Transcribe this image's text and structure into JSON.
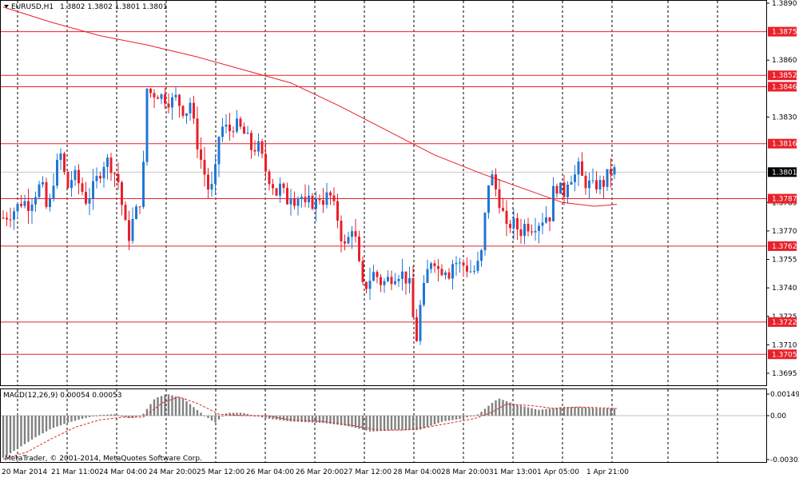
{
  "header": {
    "symbol_text": "EURUSD,H1",
    "ohlc_text": "1.3802 1.3802 1.3801 1.3801"
  },
  "macd": {
    "label": "MACD(12,26,9) 0.00054 0.00053",
    "axis_labels": [
      "0.00149",
      "0.00",
      "-0.00303"
    ],
    "ylim": [
      -0.00303,
      0.00149
    ]
  },
  "copyright": "MetaTrader, © 2001-2014, MetaQuotes Software Corp.",
  "chart_data": {
    "type": "candlestick",
    "ylim": [
      1.369,
      1.389
    ],
    "y_ticks": [
      "1.3890",
      "1.3860",
      "1.3830",
      "1.3785",
      "1.3770",
      "1.3755",
      "1.3740",
      "1.3725",
      "1.3710",
      "1.3695"
    ],
    "y_tick_values": [
      1.389,
      1.386,
      1.383,
      1.3785,
      1.377,
      1.3755,
      1.374,
      1.3725,
      1.371,
      1.3695
    ],
    "x_labels": [
      "20 Mar 2014",
      "21 Mar 11:00",
      "24 Mar 04:00",
      "24 Mar 20:00",
      "25 Mar 12:00",
      "26 Mar 04:00",
      "26 Mar 20:00",
      "27 Mar 12:00",
      "28 Mar 04:00",
      "28 Mar 20:00",
      "31 Mar 13:00",
      "1 Apr 05:00",
      "1 Apr 21:00"
    ],
    "horizontal_levels": [
      {
        "value": 1.3875,
        "label": "1.3875"
      },
      {
        "value": 1.3852,
        "label": "1.3852"
      },
      {
        "value": 1.3846,
        "label": "1.3846"
      },
      {
        "value": 1.3816,
        "label": "1.3816"
      },
      {
        "value": 1.3787,
        "label": "1.3787"
      },
      {
        "value": 1.3762,
        "label": "1.3762"
      },
      {
        "value": 1.3722,
        "label": "1.3722"
      },
      {
        "value": 1.3705,
        "label": "1.3705"
      }
    ],
    "current_price": {
      "value": 1.3801,
      "label": "1.3801"
    },
    "colors": {
      "bull": "#1f77d4",
      "bear": "#e8202a",
      "level": "#e8202a",
      "ma": "#e8202a",
      "grid": "#000000",
      "macd_bar": "#808080",
      "signal": "#e8202a"
    },
    "price_path": [
      [
        0,
        1.3777
      ],
      [
        8,
        1.3779
      ],
      [
        16,
        1.3782
      ],
      [
        24,
        1.3786
      ],
      [
        32,
        1.3784
      ],
      [
        40,
        1.379
      ],
      [
        48,
        1.3795
      ],
      [
        56,
        1.3778
      ],
      [
        64,
        1.38
      ],
      [
        72,
        1.381
      ],
      [
        80,
        1.3792
      ],
      [
        88,
        1.38
      ],
      [
        96,
        1.3794
      ],
      [
        104,
        1.3786
      ],
      [
        112,
        1.3792
      ],
      [
        120,
        1.38
      ],
      [
        128,
        1.3808
      ],
      [
        136,
        1.3804
      ],
      [
        144,
        1.3796
      ],
      [
        150,
        1.378
      ],
      [
        156,
        1.3765
      ],
      [
        162,
        1.3775
      ],
      [
        168,
        1.3782
      ],
      [
        174,
        1.379
      ],
      [
        180,
        1.3845
      ],
      [
        186,
        1.3842
      ],
      [
        192,
        1.3843
      ],
      [
        198,
        1.3841
      ],
      [
        204,
        1.384
      ],
      [
        210,
        1.3838
      ],
      [
        216,
        1.384
      ],
      [
        222,
        1.3836
      ],
      [
        228,
        1.3832
      ],
      [
        234,
        1.3838
      ],
      [
        240,
        1.3822
      ],
      [
        246,
        1.381
      ],
      [
        252,
        1.38
      ],
      [
        258,
        1.379
      ],
      [
        264,
        1.3795
      ],
      [
        270,
        1.382
      ],
      [
        276,
        1.3826
      ],
      [
        282,
        1.3822
      ],
      [
        288,
        1.3826
      ],
      [
        294,
        1.3825
      ],
      [
        300,
        1.3822
      ],
      [
        306,
        1.3818
      ],
      [
        312,
        1.3812
      ],
      [
        318,
        1.3816
      ],
      [
        324,
        1.3808
      ],
      [
        330,
        1.38
      ],
      [
        336,
        1.3796
      ],
      [
        342,
        1.379
      ],
      [
        348,
        1.3794
      ],
      [
        354,
        1.3785
      ],
      [
        360,
        1.379
      ],
      [
        366,
        1.3786
      ],
      [
        372,
        1.379
      ],
      [
        378,
        1.3782
      ],
      [
        384,
        1.3786
      ],
      [
        390,
        1.3784
      ],
      [
        396,
        1.3788
      ],
      [
        402,
        1.3786
      ],
      [
        408,
        1.379
      ],
      [
        414,
        1.3782
      ],
      [
        420,
        1.3775
      ],
      [
        426,
        1.376
      ],
      [
        432,
        1.3766
      ],
      [
        438,
        1.3775
      ],
      [
        444,
        1.3755
      ],
      [
        450,
        1.374
      ],
      [
        456,
        1.3742
      ],
      [
        462,
        1.3748
      ],
      [
        468,
        1.3746
      ],
      [
        474,
        1.3742
      ],
      [
        480,
        1.3744
      ],
      [
        486,
        1.3746
      ],
      [
        492,
        1.3748
      ],
      [
        498,
        1.3748
      ],
      [
        504,
        1.3745
      ],
      [
        510,
        1.374
      ],
      [
        516,
        1.3708
      ],
      [
        522,
        1.373
      ],
      [
        528,
        1.3742
      ],
      [
        534,
        1.3755
      ],
      [
        540,
        1.3755
      ],
      [
        546,
        1.3748
      ],
      [
        552,
        1.3752
      ],
      [
        558,
        1.3748
      ],
      [
        564,
        1.3755
      ],
      [
        570,
        1.3752
      ],
      [
        576,
        1.3752
      ],
      [
        582,
        1.375
      ],
      [
        588,
        1.3748
      ],
      [
        594,
        1.3752
      ],
      [
        600,
        1.376
      ],
      [
        606,
        1.3795
      ],
      [
        612,
        1.3798
      ],
      [
        618,
        1.379
      ],
      [
        624,
        1.3782
      ],
      [
        630,
        1.377
      ],
      [
        636,
        1.3775
      ],
      [
        642,
        1.3772
      ],
      [
        648,
        1.377
      ],
      [
        654,
        1.3774
      ],
      [
        660,
        1.3772
      ],
      [
        666,
        1.3774
      ],
      [
        672,
        1.3775
      ],
      [
        678,
        1.3778
      ],
      [
        684,
        1.3778
      ],
      [
        690,
        1.3795
      ],
      [
        696,
        1.3792
      ],
      [
        702,
        1.379
      ],
      [
        708,
        1.38
      ],
      [
        714,
        1.3798
      ],
      [
        720,
        1.3803
      ],
      [
        726,
        1.3796
      ],
      [
        732,
        1.3795
      ],
      [
        738,
        1.3793
      ],
      [
        744,
        1.3795
      ],
      [
        750,
        1.3794
      ],
      [
        756,
        1.3799
      ],
      [
        762,
        1.3802
      ],
      [
        768,
        1.3801
      ]
    ],
    "ma_path": [
      [
        0,
        1.3888
      ],
      [
        60,
        1.388
      ],
      [
        120,
        1.3873
      ],
      [
        180,
        1.3868
      ],
      [
        240,
        1.3862
      ],
      [
        300,
        1.3855
      ],
      [
        360,
        1.3848
      ],
      [
        420,
        1.3836
      ],
      [
        480,
        1.3823
      ],
      [
        540,
        1.381
      ],
      [
        600,
        1.38
      ],
      [
        660,
        1.3791
      ],
      [
        700,
        1.3785
      ],
      [
        740,
        1.3783
      ],
      [
        768,
        1.3784
      ]
    ],
    "macd_hist": [
      [
        0,
        -0.0029
      ],
      [
        20,
        -0.0022
      ],
      [
        40,
        -0.0015
      ],
      [
        60,
        -0.0009
      ],
      [
        80,
        -0.0005
      ],
      [
        100,
        -0.0002
      ],
      [
        120,
        5e-05
      ],
      [
        140,
        0.0001
      ],
      [
        160,
        -0.0002
      ],
      [
        175,
        0.0001
      ],
      [
        190,
        0.0012
      ],
      [
        205,
        0.0015
      ],
      [
        225,
        0.0012
      ],
      [
        245,
        0.0003
      ],
      [
        265,
        -0.0005
      ],
      [
        280,
        0.0002
      ],
      [
        300,
        0.0002
      ],
      [
        330,
        -0.0002
      ],
      [
        360,
        -0.0004
      ],
      [
        400,
        -0.0005
      ],
      [
        430,
        -0.0007
      ],
      [
        460,
        -0.0011
      ],
      [
        490,
        -0.001
      ],
      [
        520,
        -0.001
      ],
      [
        550,
        -0.0004
      ],
      [
        575,
        -0.0002
      ],
      [
        595,
        0.0001
      ],
      [
        610,
        0.0008
      ],
      [
        620,
        0.0012
      ],
      [
        640,
        0.0008
      ],
      [
        670,
        0.0004
      ],
      [
        700,
        0.0006
      ],
      [
        720,
        0.0006
      ],
      [
        745,
        0.0005
      ],
      [
        768,
        0.0005
      ]
    ],
    "macd_signal": [
      [
        0,
        -0.003
      ],
      [
        30,
        -0.0025
      ],
      [
        60,
        -0.0016
      ],
      [
        90,
        -0.0008
      ],
      [
        120,
        -0.0003
      ],
      [
        150,
        -0.0001
      ],
      [
        175,
        -0.0001
      ],
      [
        200,
        0.0009
      ],
      [
        220,
        0.0013
      ],
      [
        245,
        0.0008
      ],
      [
        270,
        0.0001
      ],
      [
        300,
        0.0
      ],
      [
        330,
        0.0
      ],
      [
        360,
        -0.0003
      ],
      [
        400,
        -0.0004
      ],
      [
        440,
        -0.0007
      ],
      [
        470,
        -0.001
      ],
      [
        500,
        -0.001
      ],
      [
        530,
        -0.0008
      ],
      [
        560,
        -0.0005
      ],
      [
        590,
        -0.0002
      ],
      [
        610,
        0.0002
      ],
      [
        630,
        0.0008
      ],
      [
        660,
        0.0007
      ],
      [
        690,
        0.0005
      ],
      [
        720,
        0.0006
      ],
      [
        768,
        0.0005
      ]
    ]
  }
}
